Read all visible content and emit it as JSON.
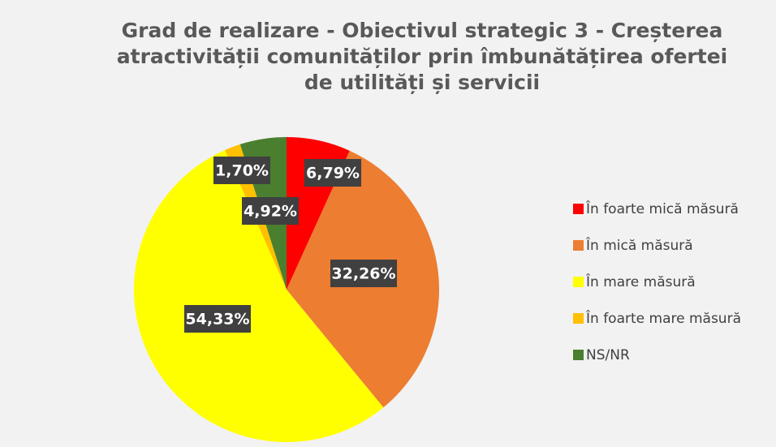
{
  "chart_data": {
    "type": "pie",
    "title": "Grad de realizare - Obiectivul strategic 3 - Creșterea atractivității comunităților prin îmbunătățirea ofertei de utilități și servicii",
    "categories": [
      "În foarte mică măsură",
      "În mică măsură",
      "În mare măsură",
      "În foarte mare măsură",
      "NS/NR"
    ],
    "values": [
      6.79,
      32.26,
      54.33,
      1.7,
      4.92
    ],
    "value_labels": [
      "6,79%",
      "32,26%",
      "54,33%",
      "1,70%",
      "4,92%"
    ],
    "colors": [
      "#ff0000",
      "#ed7d31",
      "#ffff00",
      "#ffc000",
      "#4a7f2f"
    ],
    "legend": "right"
  }
}
